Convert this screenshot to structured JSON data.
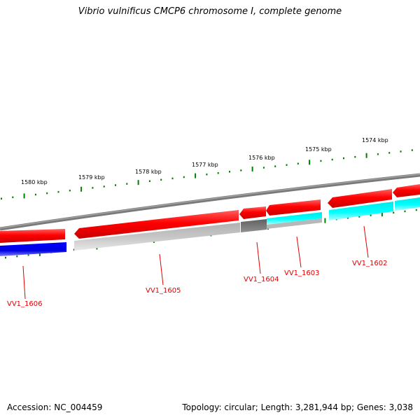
{
  "title": "Vibrio vulnificus CMCP6 chromosome I, complete genome",
  "footer": {
    "accession": "Accession: NC_004459",
    "summary": "Topology: circular; Length: 3,281,944 bp; Genes: 3,038"
  },
  "ruler_labels": [
    "1580 kbp",
    "1579 kbp",
    "1578 kbp",
    "1577 kbp",
    "1576 kbp",
    "1575 kbp",
    "1574 kbp"
  ],
  "gene_labels": [
    "VV1_1606",
    "VV1_1605",
    "VV1_1604",
    "VV1_1603",
    "VV1_1602"
  ],
  "colors": {
    "backbone": "#808080",
    "forward_strand": "#ff0000",
    "cds_blue": "#0000ff",
    "cds_cyan": "#00ffff",
    "cds_gray": "#c0c0c0",
    "cds_darkgray": "#707070",
    "ticks": "#008000",
    "labels": "#e00000"
  }
}
